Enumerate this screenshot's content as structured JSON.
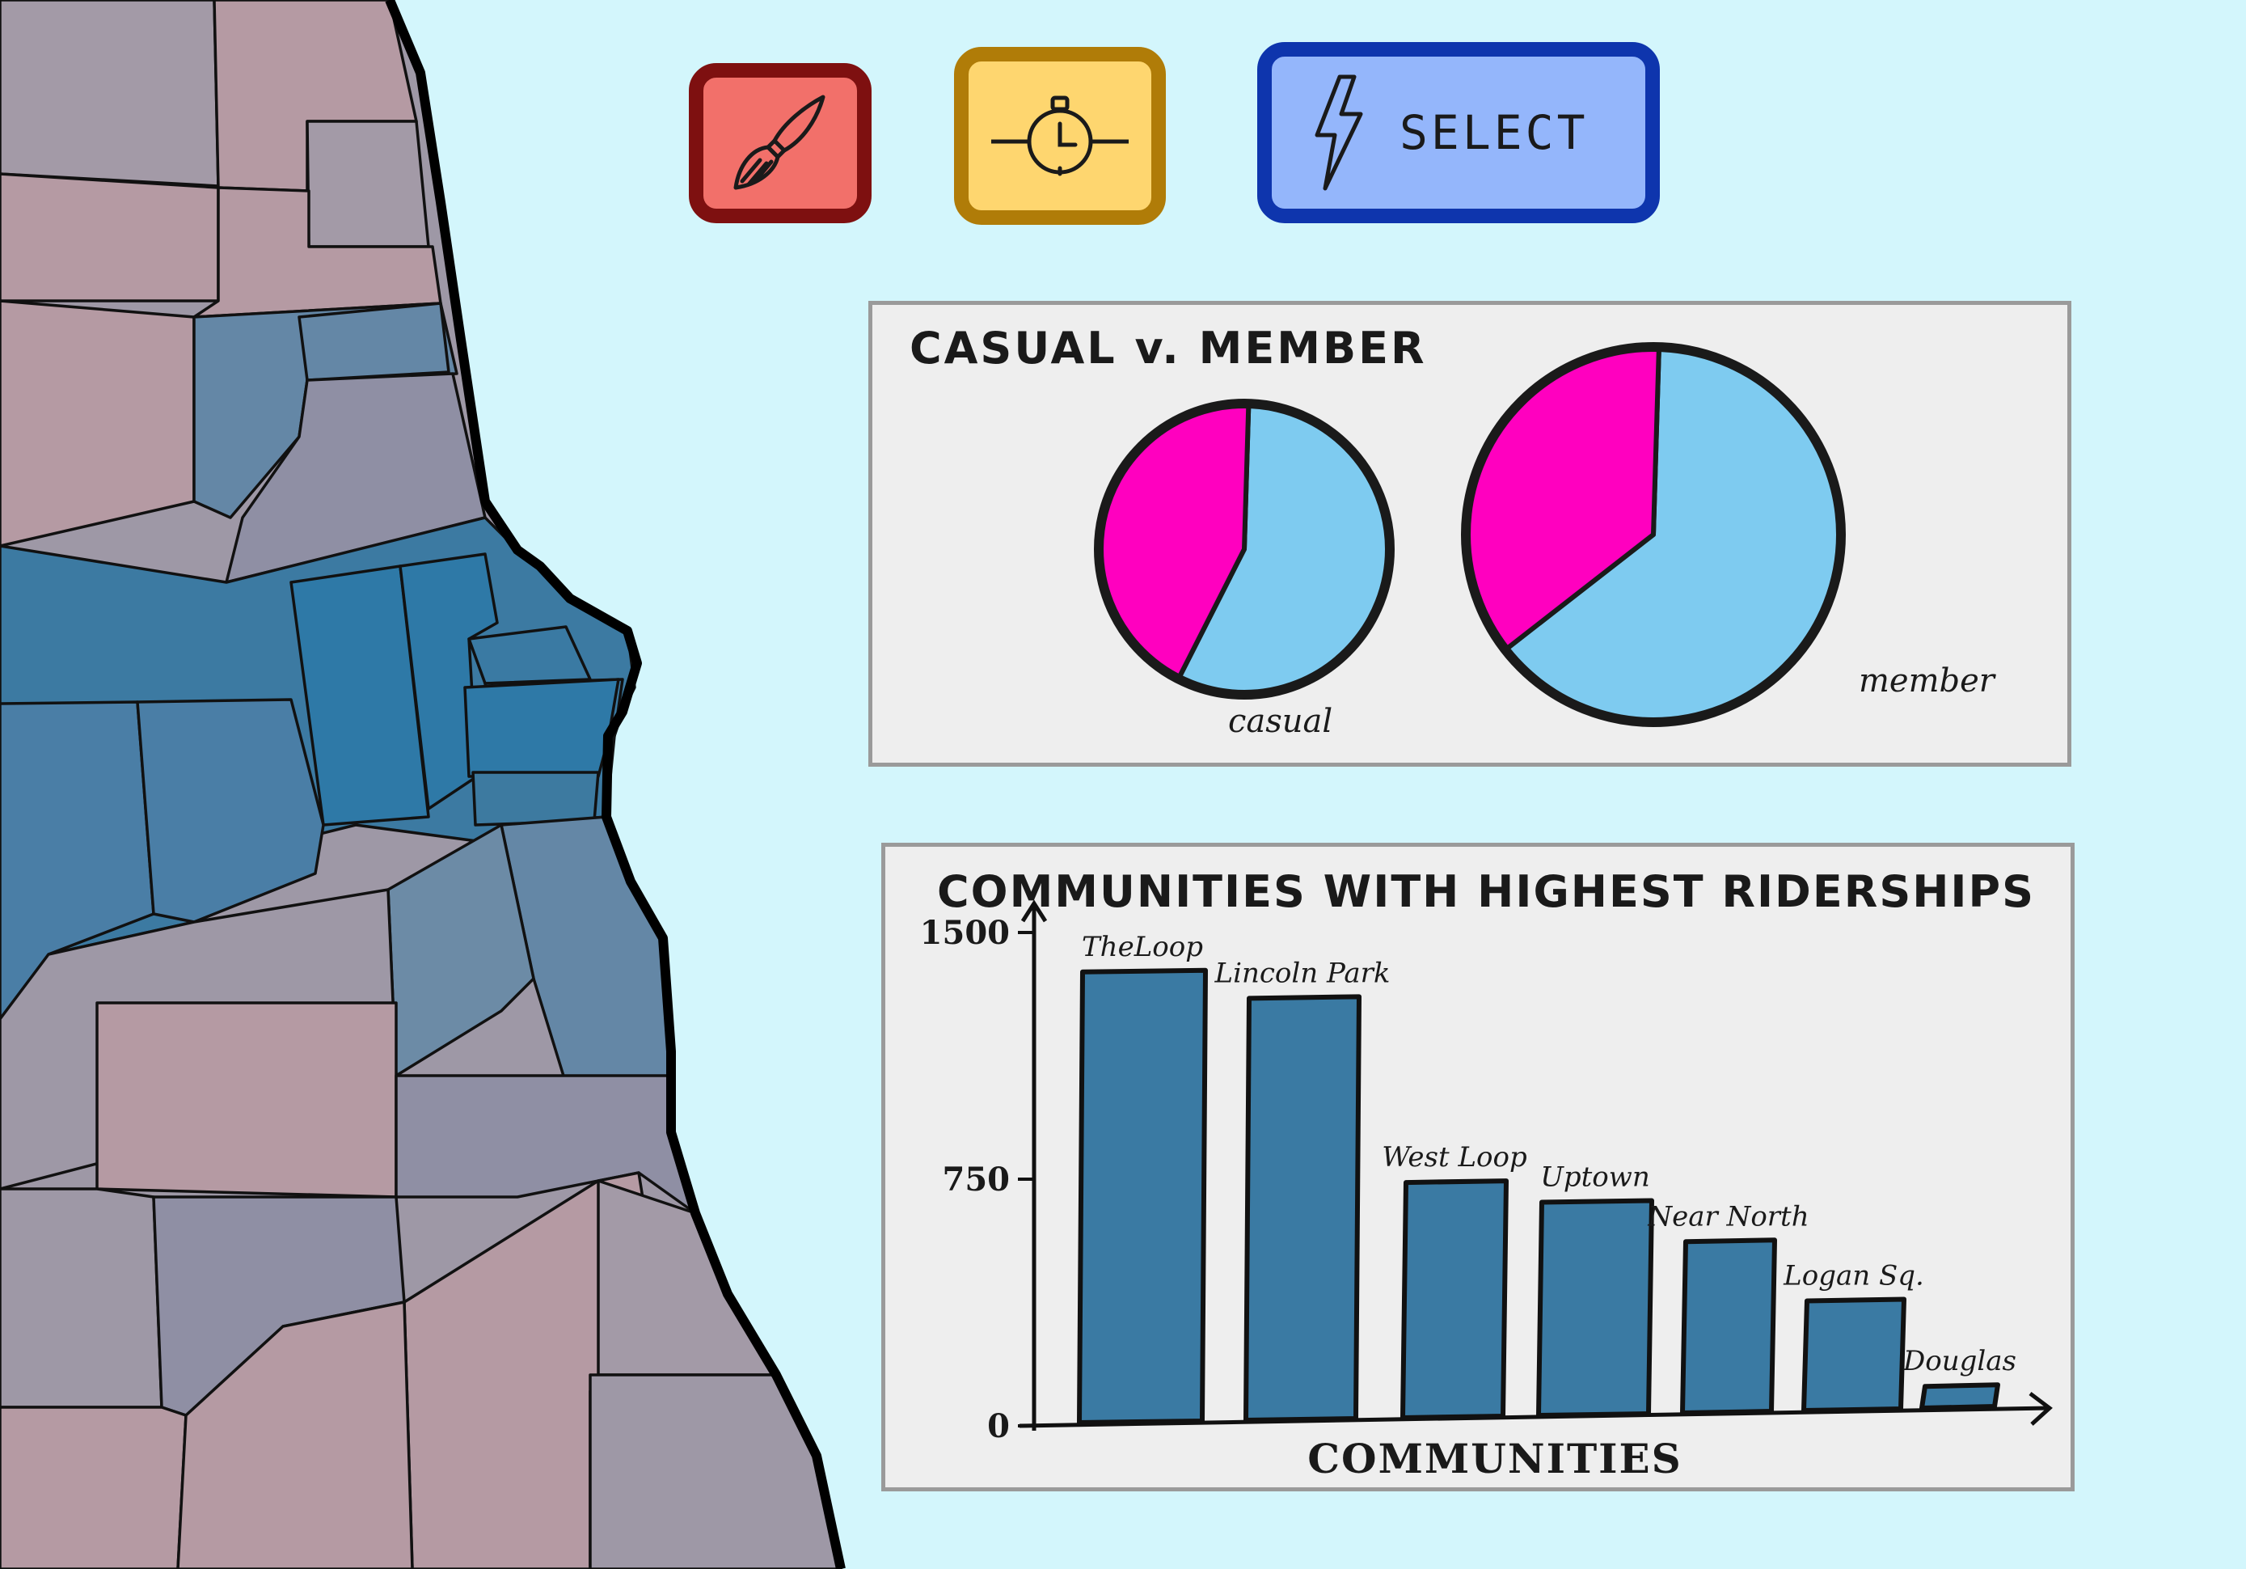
{
  "toolbar": {
    "brush_icon": "paintbrush-icon",
    "timer_icon": "stopwatch-icon",
    "select_icon": "lightning-bolt-icon",
    "select_label": "SELECT",
    "colors": {
      "brush_fill": "#f2706a",
      "brush_border": "#7e1010",
      "timer_fill": "#fed66f",
      "timer_border": "#b07c08",
      "select_fill": "#94b6fb",
      "select_border": "#0e35ad"
    }
  },
  "map": {
    "description_colors": {
      "water": "#d3f6fc",
      "low": "#b59aa3",
      "mid": "#8f8fa4",
      "high": "#5f86a6",
      "highest": "#3a7aa3"
    }
  },
  "pie_panel": {
    "title": "CASUAL v. MEMBER",
    "chart_data": {
      "type": "pie",
      "colors": {
        "magenta": "#ff00bf",
        "light_blue": "#7ecbf0"
      },
      "pies": [
        {
          "label": "casual",
          "slices": [
            {
              "color": "magenta",
              "value": 43
            },
            {
              "color": "light_blue",
              "value": 57
            }
          ]
        },
        {
          "label": "member",
          "slices": [
            {
              "color": "magenta",
              "value": 36
            },
            {
              "color": "light_blue",
              "value": 64
            }
          ]
        }
      ]
    }
  },
  "bar_panel": {
    "title": "COMMUNITIES WITH HIGHEST RIDERSHIPS",
    "chart_data": {
      "type": "bar",
      "title": "COMMUNITIES WITH HIGHEST RIDERSHIPS",
      "xlabel": "COMMUNITIES",
      "ylabel": "",
      "ylim": [
        0,
        1500
      ],
      "yticks": [
        "0",
        "750",
        "1500"
      ],
      "categories": [
        "TheLoop",
        "Lincoln Park",
        "West Loop",
        "Uptown",
        "Near North",
        "Logan Sq.",
        "Douglas"
      ],
      "values": [
        1380,
        1300,
        740,
        680,
        560,
        380,
        120
      ],
      "bar_color": "#3a7aa3"
    }
  }
}
